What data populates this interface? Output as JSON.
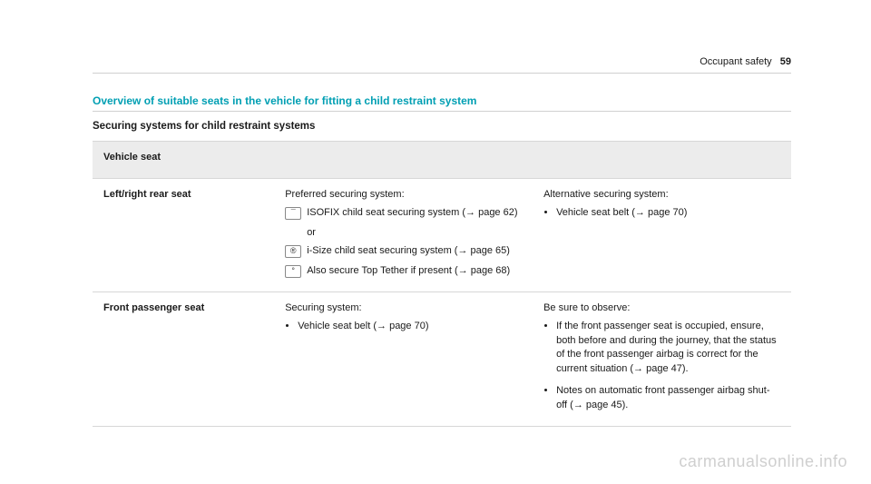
{
  "header": {
    "section": "Occupant safety",
    "page_number": "59"
  },
  "title": "Overview of suitable seats in the vehicle for fitting a child restraint system",
  "subhead": "Securing systems for child restraint systems",
  "table": {
    "header": "Vehicle seat",
    "rows": [
      {
        "seat": "Left/right rear seat",
        "mid": {
          "lead": "Preferred securing system:",
          "items": [
            {
              "icon": "¯",
              "text": "ISOFIX child seat securing system (→ page 62)"
            },
            {
              "or": "or"
            },
            {
              "icon": "®",
              "text": "i-Size child seat securing system (→ page 65)"
            },
            {
              "icon": "°",
              "text": "Also secure Top Tether if present (→ page 68)"
            }
          ]
        },
        "right": {
          "lead": "Alternative securing system:",
          "bullets": [
            "Vehicle seat belt (→ page 70)"
          ]
        }
      },
      {
        "seat": "Front passenger seat",
        "mid": {
          "lead": "Securing system:",
          "bullets": [
            "Vehicle seat belt (→ page 70)"
          ]
        },
        "right": {
          "lead": "Be sure to observe:",
          "bullets": [
            "If the front passenger seat is occupied, ensure, both before and during the journey, that the status of the front passenger airbag is correct for the current situation (→ page 47).",
            "Notes on automatic front passenger airbag shut-off (→ page 45)."
          ]
        }
      }
    ]
  },
  "watermark": "carmanualsonline.info",
  "colors": {
    "accent": "#009fb3",
    "rule": "#d0d0d0",
    "header_bg": "#ececec",
    "watermark": "#cfcfcf"
  }
}
